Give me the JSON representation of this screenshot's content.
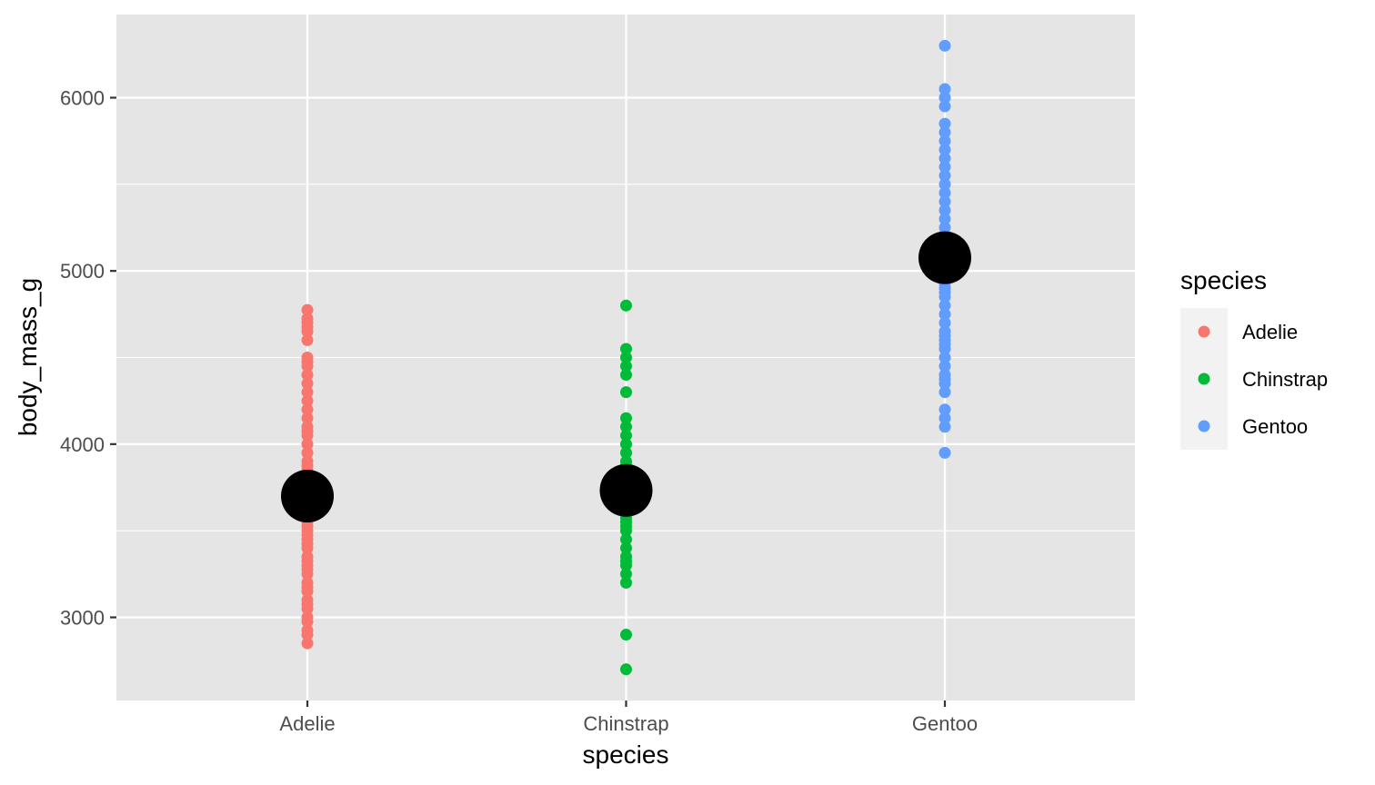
{
  "chart_data": {
    "type": "scatter",
    "xlabel": "species",
    "ylabel": "body_mass_g",
    "categories": [
      "Adelie",
      "Chinstrap",
      "Gentoo"
    ],
    "ylim": [
      2520,
      6480
    ],
    "yticks": [
      3000,
      4000,
      5000,
      6000
    ],
    "grid": true,
    "legend": {
      "title": "species",
      "placement": "right"
    },
    "series": [
      {
        "name": "Adelie",
        "category": "Adelie",
        "color": "#F8766D",
        "values": [
          2850,
          2900,
          2925,
          2975,
          3000,
          3050,
          3075,
          3100,
          3150,
          3175,
          3200,
          3250,
          3275,
          3300,
          3325,
          3350,
          3400,
          3425,
          3450,
          3475,
          3500,
          3525,
          3550,
          3575,
          3600,
          3625,
          3650,
          3675,
          3700,
          3725,
          3750,
          3775,
          3800,
          3825,
          3850,
          3875,
          3900,
          3950,
          4000,
          4050,
          4075,
          4100,
          4150,
          4200,
          4250,
          4300,
          4350,
          4400,
          4450,
          4475,
          4500,
          4600,
          4650,
          4675,
          4700,
          4725,
          4775
        ]
      },
      {
        "name": "Chinstrap",
        "category": "Chinstrap",
        "color": "#00BA38",
        "values": [
          2700,
          2900,
          3200,
          3250,
          3300,
          3325,
          3350,
          3400,
          3450,
          3500,
          3525,
          3550,
          3575,
          3600,
          3650,
          3675,
          3700,
          3725,
          3750,
          3775,
          3800,
          3850,
          3875,
          3900,
          3950,
          4000,
          4050,
          4100,
          4150,
          4300,
          4400,
          4450,
          4500,
          4550,
          4800
        ]
      },
      {
        "name": "Gentoo",
        "category": "Gentoo",
        "color": "#619CFF",
        "values": [
          3950,
          4100,
          4150,
          4200,
          4300,
          4350,
          4375,
          4400,
          4450,
          4500,
          4550,
          4575,
          4600,
          4625,
          4650,
          4700,
          4750,
          4800,
          4850,
          4875,
          4900,
          4925,
          4950,
          5000,
          5050,
          5100,
          5150,
          5200,
          5250,
          5300,
          5350,
          5400,
          5450,
          5500,
          5550,
          5600,
          5650,
          5700,
          5750,
          5800,
          5850,
          5950,
          6000,
          6050,
          6300
        ]
      }
    ],
    "summary_points": [
      {
        "category": "Adelie",
        "value": 3700,
        "color": "#000000"
      },
      {
        "category": "Chinstrap",
        "value": 3733,
        "color": "#000000"
      },
      {
        "category": "Gentoo",
        "value": 5076,
        "color": "#000000"
      }
    ],
    "style": {
      "panel_background": "#E5E5E5",
      "grid_color": "#FFFFFF",
      "tick_color": "#333333",
      "legend_key_background": "#F2F2F2"
    }
  }
}
